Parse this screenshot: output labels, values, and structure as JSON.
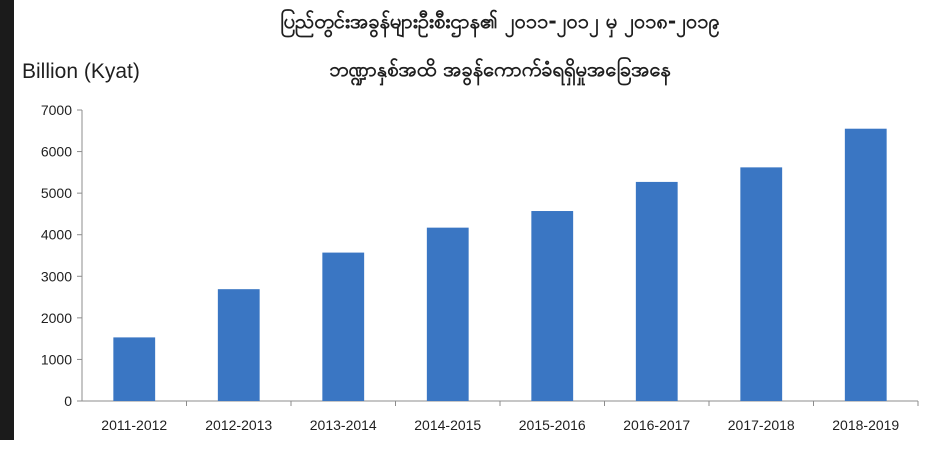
{
  "chart_data": {
    "type": "bar",
    "title_line_1": "ပြည်တွင်းအခွန်များဦးစီးဌာန၏ ၂၀၁၁-၂၀၁၂ မှ ၂၀၁၈-၂၀၁၉",
    "title_line_2": "ဘဏ္ဍာနှစ်အထိ အခွန်ကောက်ခံရရှိမှုအခြေအနေ",
    "ylabel": "Billion (Kyat)",
    "xlabel": "",
    "categories": [
      "2011-2012",
      "2012-2013",
      "2013-2014",
      "2014-2015",
      "2015-2016",
      "2016-2017",
      "2017-2018",
      "2018-2019"
    ],
    "values": [
      1530,
      2690,
      3570,
      4170,
      4570,
      5270,
      5620,
      6550
    ],
    "ylim": [
      0,
      7000
    ],
    "yticks": [
      0,
      1000,
      2000,
      3000,
      4000,
      5000,
      6000,
      7000
    ],
    "grid": false,
    "legend": "none",
    "colors": {
      "bar": "#3a76c3",
      "axis": "#8c8c8c",
      "text": "#1f1f1f",
      "border": "#1b1b1b"
    }
  }
}
